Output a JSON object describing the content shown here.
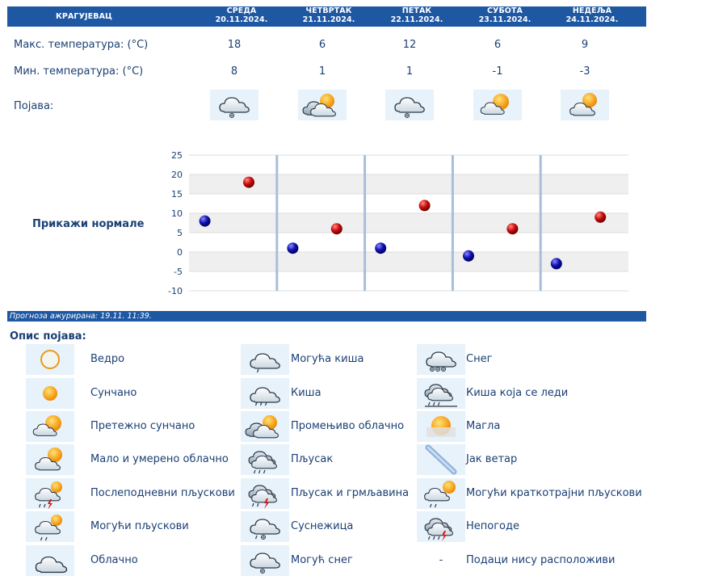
{
  "header": {
    "city": "КРАГУЈЕВАЦ",
    "days": [
      {
        "name": "СРЕДА",
        "date": "20.11.2024."
      },
      {
        "name": "ЧЕТВРТАК",
        "date": "21.11.2024."
      },
      {
        "name": "ПЕТАК",
        "date": "22.11.2024."
      },
      {
        "name": "СУБОТА",
        "date": "23.11.2024."
      },
      {
        "name": "НЕДЕЉА",
        "date": "24.11.2024."
      }
    ]
  },
  "rows": {
    "max_label": "Макс. температура: (°C)",
    "min_label": "Мин. температура: (°C)",
    "phen_label": "Појава:",
    "max": [
      "18",
      "6",
      "12",
      "6",
      "9"
    ],
    "min": [
      "8",
      "1",
      "1",
      "-1",
      "-3"
    ],
    "phen_icons": [
      "possible-snow-icon",
      "variable-cloudy-icon",
      "possible-snow-icon",
      "mostly-sunny-icon",
      "partly-cloudy-icon"
    ]
  },
  "show_normals": "Прикажи нормале",
  "chart_data": {
    "type": "scatter",
    "title": "",
    "xlabel": "",
    "ylabel": "",
    "categories": [
      "20.11.2024.",
      "21.11.2024.",
      "22.11.2024.",
      "23.11.2024.",
      "24.11.2024."
    ],
    "ylim": [
      -10,
      25
    ],
    "yticks": [
      "25",
      "20",
      "15",
      "10",
      "5",
      "0",
      "-5",
      "-10"
    ],
    "series": [
      {
        "values": [
          8,
          1,
          1,
          -1,
          -3
        ],
        "color": "#1414b4"
      },
      {
        "values": [
          18,
          6,
          12,
          6,
          9
        ],
        "color": "#c81414"
      }
    ]
  },
  "updated": "Прогноза ажурирана:  19.11.  11:39.",
  "legend_title": "Опис појава:",
  "legend": [
    {
      "label": "Ведро",
      "icon": "clear-icon"
    },
    {
      "label": "Могућа киша",
      "icon": "possible-rain-icon"
    },
    {
      "label": "Снег",
      "icon": "snow-icon"
    },
    {
      "label": "Сунчано",
      "icon": "sunny-icon"
    },
    {
      "label": "Киша",
      "icon": "rain-icon"
    },
    {
      "label": "Киша која се леди",
      "icon": "freezing-rain-icon"
    },
    {
      "label": "Претежно сунчано",
      "icon": "mostly-sunny-icon"
    },
    {
      "label": "Промењиво облачно",
      "icon": "variable-cloudy-icon"
    },
    {
      "label": "Магла",
      "icon": "fog-icon"
    },
    {
      "label": "Мало и умерено облачно",
      "icon": "partly-cloudy-icon"
    },
    {
      "label": "Пљусак",
      "icon": "shower-icon"
    },
    {
      "label": "Јак ветар",
      "icon": "strong-wind-icon"
    },
    {
      "label": "Послеподневни пљускови",
      "icon": "afternoon-showers-icon"
    },
    {
      "label": "Пљусак и грмљавина",
      "icon": "thunder-shower-icon"
    },
    {
      "label": "Могући краткотрајни пљускови",
      "icon": "possible-brief-showers-icon"
    },
    {
      "label": "Могући пљускови",
      "icon": "possible-showers-icon"
    },
    {
      "label": "Суснежица",
      "icon": "sleet-icon"
    },
    {
      "label": "Непогоде",
      "icon": "storm-icon"
    },
    {
      "label": "Облачно",
      "icon": "cloudy-icon"
    },
    {
      "label": "Могућ снег",
      "icon": "possible-snow-icon"
    },
    {
      "label": "Подаци нису расположиви",
      "icon": "no-data-dash",
      "dash": "-"
    }
  ]
}
